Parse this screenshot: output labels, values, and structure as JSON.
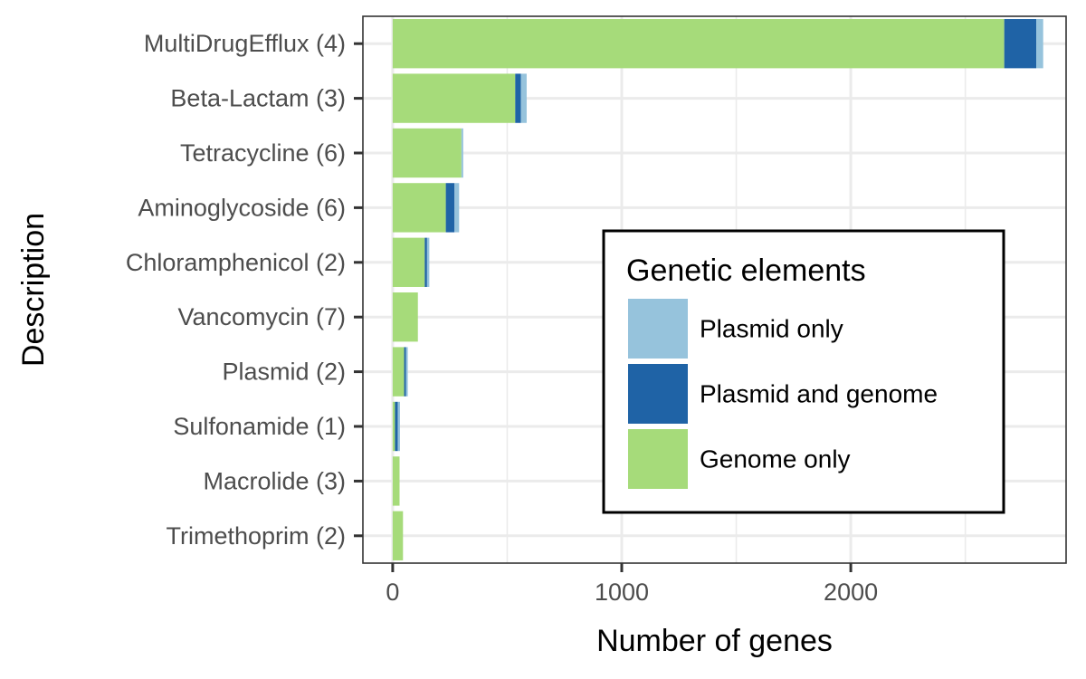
{
  "chart_data": {
    "type": "bar",
    "orientation": "horizontal",
    "stacked": true,
    "categories": [
      "MultiDrugEfflux (4)",
      "Beta-Lactam (3)",
      "Tetracycline (6)",
      "Aminoglycoside (6)",
      "Chloramphenicol (2)",
      "Vancomycin (7)",
      "Plasmid (2)",
      "Sulfonamide (1)",
      "Macrolide (3)",
      "Trimethoprim (2)"
    ],
    "series": [
      {
        "name": "Genome only",
        "color": "#a6db7a",
        "values": [
          2670,
          535,
          300,
          232,
          140,
          110,
          50,
          10,
          30,
          45
        ]
      },
      {
        "name": "Plasmid and genome",
        "color": "#1f63a6",
        "values": [
          140,
          25,
          0,
          38,
          10,
          0,
          8,
          12,
          0,
          0
        ]
      },
      {
        "name": "Plasmid only",
        "color": "#96c3dc",
        "values": [
          30,
          25,
          8,
          20,
          10,
          0,
          8,
          10,
          0,
          0
        ]
      }
    ],
    "title": "",
    "xlabel": "Number of genes",
    "ylabel": "Description",
    "xlim": [
      -130,
      2940
    ],
    "x_ticks": [
      0,
      1000,
      2000
    ],
    "x_tick_labels": [
      "0",
      "1000",
      "2000"
    ],
    "grid": true,
    "legend": {
      "title": "Genetic elements",
      "placement": "inside-right",
      "entries": [
        "Plasmid only",
        "Plasmid and genome",
        "Genome only"
      ]
    }
  }
}
